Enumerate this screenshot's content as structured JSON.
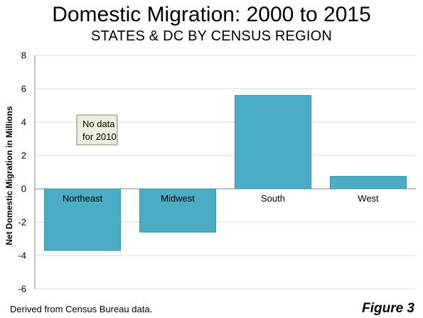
{
  "title": "Domestic Migration: 2000 to 2015",
  "subtitle": "STATES & DC BY CENSUS REGION",
  "source": "Derived from Census Bureau data.",
  "figure_label": "Figure 3",
  "annotation": [
    "No data",
    "for 2010"
  ],
  "colors": {
    "bar": "#4BACC6",
    "bar_edge": "#3E93AA",
    "grid": "#D9D9D9",
    "axis": "#868686",
    "note_bg": "#EDEDDD"
  },
  "chart_data": {
    "type": "bar",
    "title": "Domestic Migration: 2000 to 2015",
    "subtitle": "STATES & DC BY CENSUS REGION",
    "xlabel": "",
    "ylabel": "Net Domestic Migration in Millions",
    "categories": [
      "Northeast",
      "Midwest",
      "South",
      "West"
    ],
    "values": [
      -3.7,
      -2.6,
      5.6,
      0.75
    ],
    "ylim": [
      -6,
      8
    ],
    "yticks": [
      -6,
      -4,
      -2,
      0,
      2,
      4,
      6,
      8
    ],
    "grid": true,
    "legend": "none"
  }
}
